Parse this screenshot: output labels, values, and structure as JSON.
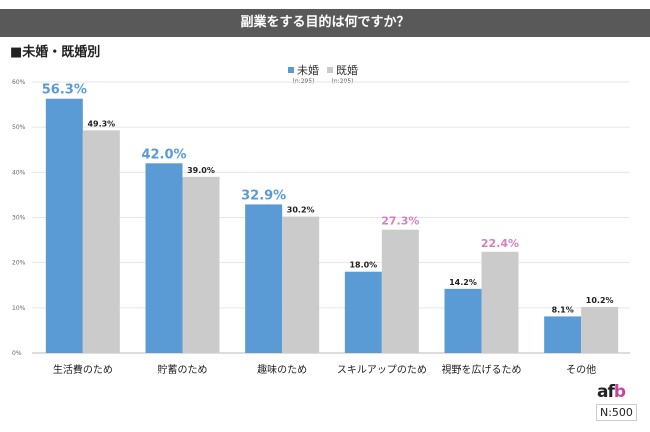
{
  "header": {
    "title": "副業をする目的は何ですか？",
    "subtitle": "■未婚・既婚別"
  },
  "legend": [
    {
      "label": "未婚",
      "n": "(n:295)",
      "color": "#5b9bd5"
    },
    {
      "label": "既婚",
      "n": "(n:205)",
      "color": "#cccbcb"
    }
  ],
  "footer": {
    "logo_text_a": "af",
    "logo_text_b": "b",
    "sample": "N:500"
  },
  "chart_data": {
    "type": "bar",
    "title": "副業をする目的は何ですか？",
    "categories": [
      "生活費のため",
      "貯蓄のため",
      "趣味のため",
      "スキルアップのため",
      "視野を広げるため",
      "その他"
    ],
    "series": [
      {
        "name": "未婚",
        "values": [
          56.3,
          42.0,
          32.9,
          18.0,
          14.2,
          8.1
        ]
      },
      {
        "name": "既婚",
        "values": [
          49.3,
          39.0,
          30.2,
          27.3,
          22.4,
          10.2
        ]
      }
    ],
    "ylim": [
      0,
      60
    ],
    "yticks": [
      "0%",
      "10%",
      "20%",
      "30%",
      "40%",
      "50%",
      "60%"
    ],
    "grid": true,
    "legend_position": "top-center",
    "highlight_colors": {
      "single": "#5b9bd5",
      "married": "#d77fc4",
      "normal": "#222222"
    }
  }
}
